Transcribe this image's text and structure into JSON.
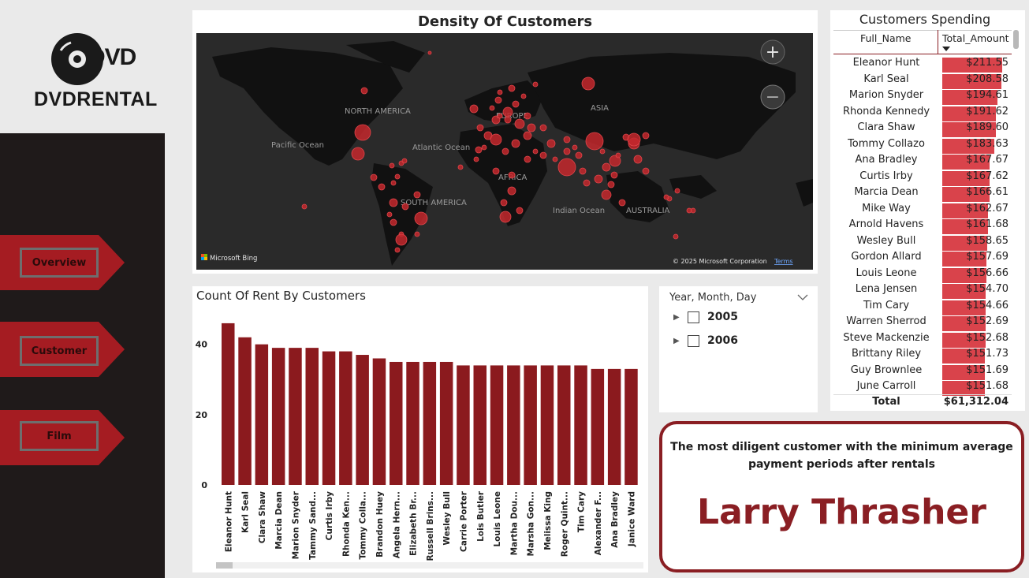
{
  "brand": {
    "logo_word": "DVD",
    "name": "DVDRENTAL"
  },
  "nav": [
    {
      "label": "Overview"
    },
    {
      "label": "Customer"
    },
    {
      "label": "Film"
    }
  ],
  "map": {
    "title": "Density Of Customers",
    "labels": {
      "north_america": "NORTH AMERICA",
      "pacific": "Pacific Ocean",
      "atlantic": "Atlantic Ocean",
      "europe": "EUROPE",
      "asia": "ASIA",
      "africa": "AFRICA",
      "south_america": "SOUTH AMERICA",
      "indian": "Indian Ocean",
      "australia": "AUSTRALIA"
    },
    "attribution": "Microsoft Bing",
    "copyright": "© 2025 Microsoft Corporation",
    "terms": "Terms",
    "zoom_in": "+",
    "zoom_out": "−"
  },
  "bar_chart": {
    "title": "Count Of Rent By Customers"
  },
  "chart_data": {
    "type": "bar",
    "title": "Count Of Rent By Customers",
    "categories": [
      "Eleanor Hunt",
      "Karl Seal",
      "Clara Shaw",
      "Marcia Dean",
      "Marion Snyder",
      "Tammy Sand...",
      "Curtis Irby",
      "Rhonda Ken...",
      "Tommy Colla...",
      "Brandon Huey",
      "Angela Hern...",
      "Elizabeth Br...",
      "Russell Brins...",
      "Wesley Bull",
      "Carrie Porter",
      "Lois Butler",
      "Louis Leone",
      "Martha Dou...",
      "Marsha Gon...",
      "Melissa King",
      "Roger Quint...",
      "Tim Cary",
      "Alexander F...",
      "Ana Bradley",
      "Janice Ward"
    ],
    "values": [
      46,
      42,
      40,
      39,
      39,
      39,
      38,
      38,
      37,
      36,
      35,
      35,
      35,
      35,
      34,
      34,
      34,
      34,
      34,
      34,
      34,
      34,
      33,
      33,
      33
    ],
    "yticks": [
      "0",
      "20",
      "40"
    ],
    "ylim": [
      0,
      48
    ],
    "color": "#8b1a1e"
  },
  "slicer": {
    "title": "Year, Month, Day",
    "items": [
      "2005",
      "2006"
    ]
  },
  "spending": {
    "title": "Customers Spending",
    "col_name": "Full_Name",
    "col_amount": "Total_Amount",
    "max_value": 211.55,
    "rows": [
      {
        "name": "Eleanor Hunt",
        "amount": "$211.55",
        "value": 211.55
      },
      {
        "name": "Karl Seal",
        "amount": "$208.58",
        "value": 208.58
      },
      {
        "name": "Marion Snyder",
        "amount": "$194.61",
        "value": 194.61
      },
      {
        "name": "Rhonda Kennedy",
        "amount": "$191.62",
        "value": 191.62
      },
      {
        "name": "Clara Shaw",
        "amount": "$189.60",
        "value": 189.6
      },
      {
        "name": "Tommy Collazo",
        "amount": "$183.63",
        "value": 183.63
      },
      {
        "name": "Ana Bradley",
        "amount": "$167.67",
        "value": 167.67
      },
      {
        "name": "Curtis Irby",
        "amount": "$167.62",
        "value": 167.62
      },
      {
        "name": "Marcia Dean",
        "amount": "$166.61",
        "value": 166.61
      },
      {
        "name": "Mike Way",
        "amount": "$162.67",
        "value": 162.67
      },
      {
        "name": "Arnold Havens",
        "amount": "$161.68",
        "value": 161.68
      },
      {
        "name": "Wesley Bull",
        "amount": "$158.65",
        "value": 158.65
      },
      {
        "name": "Gordon Allard",
        "amount": "$157.69",
        "value": 157.69
      },
      {
        "name": "Louis Leone",
        "amount": "$156.66",
        "value": 156.66
      },
      {
        "name": "Lena Jensen",
        "amount": "$154.70",
        "value": 154.7
      },
      {
        "name": "Tim Cary",
        "amount": "$154.66",
        "value": 154.66
      },
      {
        "name": "Warren Sherrod",
        "amount": "$152.69",
        "value": 152.69
      },
      {
        "name": "Steve Mackenzie",
        "amount": "$152.68",
        "value": 152.68
      },
      {
        "name": "Brittany Riley",
        "amount": "$151.73",
        "value": 151.73
      },
      {
        "name": "Guy Brownlee",
        "amount": "$151.69",
        "value": 151.69
      },
      {
        "name": "June Carroll",
        "amount": "$151.68",
        "value": 151.68
      }
    ],
    "total_label": "Total",
    "total_amount": "$61,312.04"
  },
  "kpi": {
    "caption": "The most diligent customer with the minimum average payment periods after rentals",
    "value": "Larry Thrasher"
  },
  "colors": {
    "accent": "#8a1e23",
    "nav_bg": "#1f1a1a",
    "bar": "#8b1a1e",
    "table_bar": "#d9434b"
  }
}
